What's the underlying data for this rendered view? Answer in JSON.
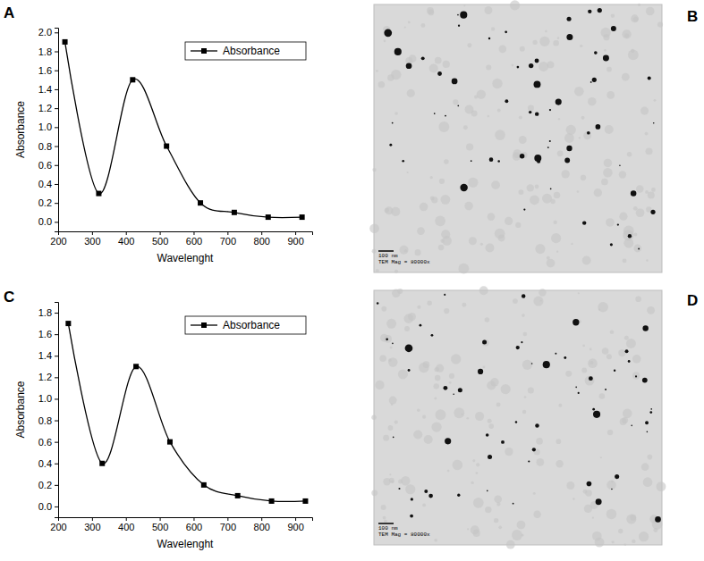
{
  "chart_data": [
    {
      "type": "line",
      "title": "A",
      "x_label": "Wavelenght",
      "y_label": "Absorbance",
      "x": [
        220,
        320,
        420,
        520,
        620,
        720,
        820,
        920
      ],
      "series": [
        {
          "name": "Absorbance",
          "color": "#000000",
          "marker": "square",
          "values": [
            1.9,
            0.3,
            1.5,
            0.8,
            0.2,
            0.1,
            0.05,
            0.05
          ]
        }
      ],
      "xlim": [
        200,
        950
      ],
      "xticks": [
        200,
        300,
        400,
        500,
        600,
        700,
        800,
        900
      ],
      "ylim": [
        -0.1,
        2.05
      ],
      "yticks": [
        {
          "value": 0,
          "label": "0.0"
        },
        0.2,
        0.4,
        0.6,
        0.8,
        {
          "value": 1,
          "label": "1.0"
        },
        1.2,
        1.4,
        1.6,
        1.8,
        {
          "value": 2,
          "label": "2.0"
        }
      ],
      "legend": "top",
      "grid": false
    },
    {
      "type": "line",
      "title": "C",
      "x_label": "Wavelenght",
      "y_label": "Absorbance",
      "x": [
        230,
        330,
        430,
        530,
        630,
        730,
        830,
        930
      ],
      "series": [
        {
          "name": "Absorbance",
          "color": "#000000",
          "marker": "square",
          "values": [
            1.7,
            0.4,
            1.3,
            0.6,
            0.2,
            0.1,
            0.05,
            0.05
          ]
        }
      ],
      "xlim": [
        200,
        950
      ],
      "xticks": [
        200,
        300,
        400,
        500,
        600,
        700,
        800,
        900
      ],
      "ylim": [
        -0.1,
        1.9
      ],
      "yticks": [
        {
          "value": 0,
          "label": "0.0"
        },
        0.2,
        0.4,
        0.6,
        0.8,
        {
          "value": 1,
          "label": "1.0"
        },
        1.2,
        1.4,
        1.6,
        1.8
      ],
      "legend": "top",
      "grid": false
    }
  ],
  "images": [
    {
      "label": "B",
      "scale_bar": "100 nm",
      "caption": "TEM Mag = 80000x"
    },
    {
      "label": "D",
      "scale_bar": "100 nm",
      "caption": "TEM Mag = 80000x"
    }
  ]
}
